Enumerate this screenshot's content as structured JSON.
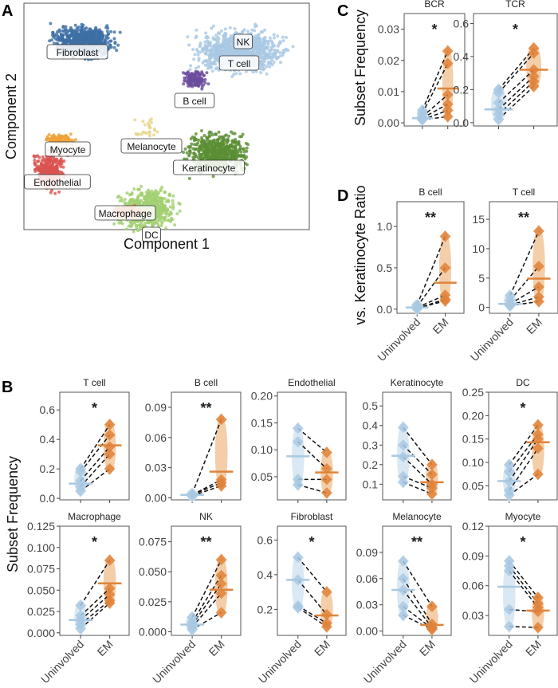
{
  "colors": {
    "uninvolved": "#a9c9e3",
    "uninvolved_fill": "#d5e5f2",
    "em": "#e0833a",
    "em_fill": "#f2c9a0",
    "frame": "#555555"
  },
  "panel_letters": [
    "A",
    "B",
    "C",
    "D"
  ],
  "groups": [
    "Uninvolved",
    "EM"
  ],
  "chart_data": [
    {
      "id": "A",
      "type": "scatter",
      "xlabel": "Component 1",
      "ylabel": "Component 2",
      "clusters": [
        {
          "label": "Fibroblast",
          "color": "#3d6fa5"
        },
        {
          "label": "NK",
          "color": "#a9c8e4"
        },
        {
          "label": "T cell",
          "color": "#a9c8e4"
        },
        {
          "label": "B cell",
          "color": "#6b4d9e"
        },
        {
          "label": "Myocyte",
          "color": "#f0a23a"
        },
        {
          "label": "Melanocyte",
          "color": "#e6d48a"
        },
        {
          "label": "Keratinocyte",
          "color": "#5b8f34"
        },
        {
          "label": "Endothelial",
          "color": "#d9534f"
        },
        {
          "label": "Macrophage",
          "color": "#e0653a"
        },
        {
          "label": "DC",
          "color": "#a2cf72"
        }
      ]
    },
    {
      "id": "C-BCR",
      "type": "violin-paired",
      "title": "BCR",
      "ylabel": "Subset Frequency",
      "ylim": [
        -0.001,
        0.035
      ],
      "ticks": [
        0,
        0.01,
        0.02,
        0.03
      ],
      "tick_labels": [
        "0.00",
        "0.01",
        "0.02",
        "0.03"
      ],
      "significance": "*",
      "uninvolved": [
        0.004,
        0.003,
        0.002,
        0.0015,
        0.001,
        0.001
      ],
      "em": [
        0.023,
        0.019,
        0.009,
        0.006,
        0.004,
        0.002
      ],
      "median": [
        0.0015,
        0.011
      ]
    },
    {
      "id": "C-TCR",
      "type": "violin-paired",
      "title": "TCR",
      "ylim": [
        -0.02,
        0.66
      ],
      "ticks": [
        0,
        0.2,
        0.4,
        0.6
      ],
      "tick_labels": [
        "0.0",
        "0.2",
        "0.4",
        "0.6"
      ],
      "significance": "*",
      "uninvolved": [
        0.2,
        0.18,
        0.12,
        0.08,
        0.05,
        0.02
      ],
      "em": [
        0.45,
        0.42,
        0.32,
        0.28,
        0.25,
        0.22
      ],
      "median": [
        0.08,
        0.32
      ]
    },
    {
      "id": "D-Bcell",
      "type": "violin-paired",
      "title": "B cell",
      "ylabel": "vs. Keratinocyte Ratio",
      "ylim": [
        -0.05,
        1.3
      ],
      "ticks": [
        0,
        0.5,
        1.0
      ],
      "tick_labels": [
        "0.0",
        "0.5",
        "1.0"
      ],
      "significance": "**",
      "uninvolved": [
        0.05,
        0.03,
        0.02,
        0.01,
        0.01
      ],
      "em": [
        0.88,
        0.5,
        0.17,
        0.12,
        0.1
      ],
      "median": [
        0.02,
        0.32
      ]
    },
    {
      "id": "D-Tcell",
      "type": "violin-paired",
      "title": "T cell",
      "ylim": [
        -1,
        18
      ],
      "ticks": [
        0,
        5,
        10,
        15
      ],
      "tick_labels": [
        "0",
        "5",
        "10",
        "15"
      ],
      "significance": "**",
      "uninvolved": [
        2,
        1.2,
        0.6,
        0.4,
        0.3
      ],
      "em": [
        13,
        7,
        3.5,
        1.8,
        1
      ],
      "median": [
        0.6,
        4.9
      ]
    },
    {
      "id": "B-Tcell",
      "type": "violin-paired",
      "title": "T cell",
      "ylabel": "Subset Frequency",
      "ylim": [
        -0.01,
        0.72
      ],
      "ticks": [
        0,
        0.2,
        0.4,
        0.6
      ],
      "tick_labels": [
        "0.0",
        "0.2",
        "0.4",
        "0.6"
      ],
      "significance": "*",
      "uninvolved": [
        0.2,
        0.18,
        0.12,
        0.08,
        0.05
      ],
      "em": [
        0.5,
        0.43,
        0.35,
        0.3,
        0.2
      ],
      "median": [
        0.1,
        0.36
      ]
    },
    {
      "id": "B-Bcell",
      "type": "violin-paired",
      "title": "B cell",
      "ylim": [
        -0.002,
        0.105
      ],
      "ticks": [
        0,
        0.03,
        0.06,
        0.09
      ],
      "tick_labels": [
        "0.00",
        "0.03",
        "0.06",
        "0.09"
      ],
      "significance": "**",
      "uninvolved": [
        0.004,
        0.003,
        0.003,
        0.002
      ],
      "em": [
        0.078,
        0.018,
        0.015,
        0.012
      ],
      "median": [
        0.003,
        0.026
      ]
    },
    {
      "id": "B-Endothelial",
      "type": "violin-paired",
      "title": "Endothelial",
      "ylim": [
        0.007,
        0.207
      ],
      "ticks": [
        0.05,
        0.1,
        0.15,
        0.2
      ],
      "tick_labels": [
        "0.05",
        "0.10",
        "0.15",
        "0.20"
      ],
      "significance": "",
      "uninvolved": [
        0.14,
        0.115,
        0.045,
        0.035
      ],
      "em": [
        0.095,
        0.065,
        0.045,
        0.02
      ],
      "median": [
        0.088,
        0.058
      ]
    },
    {
      "id": "B-Keratinocyte",
      "type": "violin-paired",
      "title": "Keratinocyte",
      "ylim": [
        0.02,
        0.57
      ],
      "ticks": [
        0.1,
        0.2,
        0.3,
        0.4,
        0.5
      ],
      "tick_labels": [
        "0.1",
        "0.2",
        "0.3",
        "0.4",
        "0.5"
      ],
      "significance": "",
      "uninvolved": [
        0.39,
        0.3,
        0.24,
        0.14,
        0.11
      ],
      "em": [
        0.2,
        0.15,
        0.1,
        0.08,
        0.05
      ],
      "median": [
        0.245,
        0.11
      ]
    },
    {
      "id": "B-DC",
      "type": "violin-paired",
      "title": "DC",
      "ylim": [
        0.02,
        0.25
      ],
      "ticks": [
        0.05,
        0.1,
        0.15,
        0.2,
        0.25
      ],
      "tick_labels": [
        "0.05",
        "0.10",
        "0.15",
        "0.20",
        "0.25"
      ],
      "significance": "*",
      "uninvolved": [
        0.095,
        0.08,
        0.06,
        0.04,
        0.03
      ],
      "em": [
        0.18,
        0.16,
        0.15,
        0.13,
        0.075
      ],
      "median": [
        0.06,
        0.143
      ]
    },
    {
      "id": "B-Macrophage",
      "type": "violin-paired",
      "title": "Macrophage",
      "ylim": [
        -0.003,
        0.125
      ],
      "ticks": [
        0,
        0.025,
        0.05,
        0.075,
        0.1,
        0.125
      ],
      "tick_labels": [
        "0.000",
        "0.025",
        "0.050",
        "0.075",
        "0.100",
        "0.125"
      ],
      "significance": "*",
      "uninvolved": [
        0.032,
        0.02,
        0.015,
        0.01,
        0.005
      ],
      "em": [
        0.085,
        0.052,
        0.045,
        0.038,
        0.035
      ],
      "median": [
        0.015,
        0.058
      ]
    },
    {
      "id": "B-NK",
      "type": "violin-paired",
      "title": "NK",
      "ylim": [
        -0.003,
        0.088
      ],
      "ticks": [
        0,
        0.025,
        0.05,
        0.075
      ],
      "tick_labels": [
        "0.000",
        "0.025",
        "0.050",
        "0.075"
      ],
      "significance": "**",
      "uninvolved": [
        0.012,
        0.008,
        0.006,
        0.004,
        0.002
      ],
      "em": [
        0.06,
        0.047,
        0.04,
        0.032,
        0.016
      ],
      "median": [
        0.006,
        0.035
      ]
    },
    {
      "id": "B-Fibroblast",
      "type": "violin-paired",
      "title": "Fibroblast",
      "ylim": [
        0.05,
        0.68
      ],
      "ticks": [
        0.2,
        0.4,
        0.6
      ],
      "tick_labels": [
        "0.2",
        "0.4",
        "0.6"
      ],
      "significance": "*",
      "uninvolved": [
        0.5,
        0.37,
        0.22,
        0.21
      ],
      "em": [
        0.3,
        0.17,
        0.12,
        0.1
      ],
      "median": [
        0.37,
        0.165
      ]
    },
    {
      "id": "B-Melanocyte",
      "type": "violin-paired",
      "title": "Melanocyte",
      "ylim": [
        -0.005,
        0.12
      ],
      "ticks": [
        0,
        0.03,
        0.06,
        0.09
      ],
      "tick_labels": [
        "0.00",
        "0.03",
        "0.06",
        "0.09"
      ],
      "significance": "**",
      "uninvolved": [
        0.08,
        0.06,
        0.047,
        0.028,
        0.018
      ],
      "em": [
        0.028,
        0.008,
        0.004,
        0.003,
        0.002
      ],
      "median": [
        0.047,
        0.007
      ]
    },
    {
      "id": "B-Myocyte",
      "type": "violin-paired",
      "title": "Myocyte",
      "ylim": [
        0.01,
        0.12
      ],
      "ticks": [
        0.03,
        0.06,
        0.09,
        0.12
      ],
      "tick_labels": [
        "0.03",
        "0.06",
        "0.09",
        "0.12"
      ],
      "significance": "*",
      "uninvolved": [
        0.085,
        0.08,
        0.075,
        0.036,
        0.019
      ],
      "em": [
        0.048,
        0.042,
        0.038,
        0.034,
        0.018
      ],
      "median": [
        0.059,
        0.035
      ]
    }
  ]
}
